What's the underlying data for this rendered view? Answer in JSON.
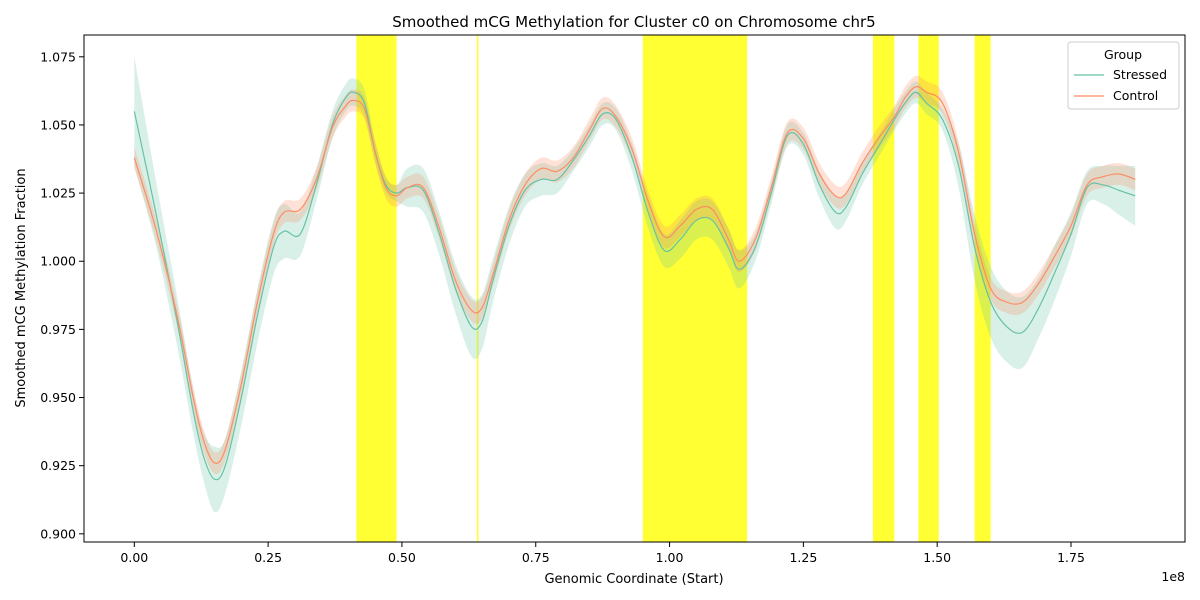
{
  "chart_data": {
    "type": "line",
    "title": "Smoothed mCG Methylation for Cluster c0 on Chromosome chr5",
    "xlabel": "Genomic Coordinate (Start)",
    "ylabel": "Smoothed mCG Methylation Fraction",
    "x_offset_label": "1e8",
    "xlim": [
      -0.094,
      1.963
    ],
    "ylim": [
      0.897,
      1.083
    ],
    "x_ticks": [
      0.0,
      0.25,
      0.5,
      0.75,
      1.0,
      1.25,
      1.5,
      1.75
    ],
    "x_tick_labels": [
      "0.00",
      "0.25",
      "0.50",
      "0.75",
      "1.00",
      "1.25",
      "1.50",
      "1.75"
    ],
    "y_ticks": [
      0.9,
      0.925,
      0.95,
      0.975,
      1.0,
      1.025,
      1.05,
      1.075
    ],
    "y_tick_labels": [
      "0.900",
      "0.925",
      "0.950",
      "0.975",
      "1.000",
      "1.025",
      "1.050",
      "1.075"
    ],
    "grid": false,
    "legend": {
      "title": "Group",
      "placement": "top-right"
    },
    "highlight_color": "#ffff00",
    "highlight_regions": [
      [
        0.415,
        0.49
      ],
      [
        0.64,
        0.643
      ],
      [
        0.95,
        1.145
      ],
      [
        1.38,
        1.42
      ],
      [
        1.465,
        1.503
      ],
      [
        1.57,
        1.6
      ]
    ],
    "series": [
      {
        "name": "Stressed",
        "color": "#66c2a5",
        "x": [
          0.0,
          0.04,
          0.08,
          0.11,
          0.13,
          0.15,
          0.17,
          0.2,
          0.23,
          0.26,
          0.28,
          0.31,
          0.34,
          0.37,
          0.395,
          0.41,
          0.43,
          0.45,
          0.47,
          0.49,
          0.51,
          0.54,
          0.57,
          0.6,
          0.63,
          0.65,
          0.67,
          0.7,
          0.73,
          0.76,
          0.79,
          0.82,
          0.85,
          0.875,
          0.9,
          0.93,
          0.96,
          0.99,
          1.02,
          1.05,
          1.08,
          1.11,
          1.13,
          1.16,
          1.19,
          1.22,
          1.25,
          1.28,
          1.31,
          1.33,
          1.36,
          1.39,
          1.42,
          1.44,
          1.46,
          1.48,
          1.51,
          1.54,
          1.57,
          1.6,
          1.63,
          1.66,
          1.69,
          1.72,
          1.75,
          1.78,
          1.81,
          1.84,
          1.87
        ],
        "y": [
          1.055,
          1.018,
          0.978,
          0.945,
          0.928,
          0.92,
          0.925,
          0.95,
          0.98,
          1.005,
          1.011,
          1.01,
          1.028,
          1.05,
          1.06,
          1.062,
          1.058,
          1.04,
          1.028,
          1.025,
          1.027,
          1.026,
          1.01,
          0.99,
          0.976,
          0.978,
          0.993,
          1.013,
          1.026,
          1.03,
          1.03,
          1.037,
          1.046,
          1.054,
          1.052,
          1.038,
          1.018,
          1.004,
          1.008,
          1.015,
          1.015,
          1.005,
          0.997,
          1.005,
          1.025,
          1.046,
          1.043,
          1.028,
          1.018,
          1.02,
          1.032,
          1.042,
          1.052,
          1.058,
          1.062,
          1.058,
          1.052,
          1.035,
          1.005,
          0.985,
          0.976,
          0.974,
          0.983,
          0.996,
          1.01,
          1.027,
          1.028,
          1.026,
          1.024
        ],
        "ci_halfwidth": [
          0.02,
          0.012,
          0.009,
          0.008,
          0.009,
          0.012,
          0.01,
          0.01,
          0.01,
          0.01,
          0.01,
          0.008,
          0.006,
          0.005,
          0.005,
          0.005,
          0.005,
          0.004,
          0.003,
          0.003,
          0.007,
          0.008,
          0.008,
          0.009,
          0.011,
          0.01,
          0.008,
          0.007,
          0.006,
          0.006,
          0.005,
          0.004,
          0.004,
          0.004,
          0.004,
          0.005,
          0.006,
          0.006,
          0.007,
          0.007,
          0.007,
          0.007,
          0.007,
          0.005,
          0.004,
          0.004,
          0.004,
          0.005,
          0.006,
          0.005,
          0.004,
          0.004,
          0.004,
          0.004,
          0.004,
          0.004,
          0.004,
          0.008,
          0.012,
          0.013,
          0.013,
          0.013,
          0.011,
          0.01,
          0.008,
          0.006,
          0.007,
          0.009,
          0.011
        ]
      },
      {
        "name": "Control",
        "color": "#fc8d62",
        "x": [
          0.0,
          0.04,
          0.08,
          0.11,
          0.13,
          0.15,
          0.17,
          0.2,
          0.23,
          0.26,
          0.28,
          0.31,
          0.34,
          0.37,
          0.395,
          0.41,
          0.43,
          0.45,
          0.47,
          0.49,
          0.51,
          0.54,
          0.57,
          0.6,
          0.63,
          0.65,
          0.67,
          0.7,
          0.73,
          0.76,
          0.79,
          0.82,
          0.85,
          0.875,
          0.9,
          0.93,
          0.96,
          0.99,
          1.02,
          1.05,
          1.08,
          1.11,
          1.13,
          1.16,
          1.19,
          1.22,
          1.25,
          1.28,
          1.31,
          1.33,
          1.36,
          1.39,
          1.42,
          1.44,
          1.46,
          1.48,
          1.51,
          1.54,
          1.57,
          1.6,
          1.63,
          1.66,
          1.69,
          1.72,
          1.75,
          1.78,
          1.81,
          1.84,
          1.87
        ],
        "y": [
          1.038,
          1.012,
          0.98,
          0.95,
          0.934,
          0.926,
          0.931,
          0.955,
          0.985,
          1.01,
          1.018,
          1.019,
          1.03,
          1.049,
          1.057,
          1.059,
          1.056,
          1.04,
          1.027,
          1.024,
          1.027,
          1.027,
          1.012,
          0.993,
          0.982,
          0.983,
          0.995,
          1.015,
          1.028,
          1.034,
          1.033,
          1.038,
          1.048,
          1.056,
          1.053,
          1.041,
          1.022,
          1.009,
          1.013,
          1.019,
          1.019,
          1.008,
          1.0,
          1.008,
          1.027,
          1.047,
          1.045,
          1.032,
          1.024,
          1.025,
          1.036,
          1.045,
          1.053,
          1.06,
          1.064,
          1.062,
          1.058,
          1.04,
          1.01,
          0.99,
          0.985,
          0.985,
          0.992,
          1.002,
          1.013,
          1.028,
          1.031,
          1.032,
          1.03
        ]
      }
    ]
  }
}
